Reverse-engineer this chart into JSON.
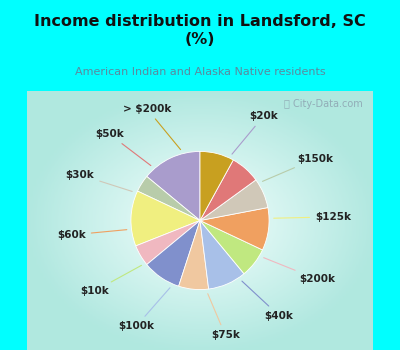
{
  "title": "Income distribution in Landsford, SC\n(%)",
  "subtitle": "American Indian and Alaska Native residents",
  "title_color": "#111111",
  "subtitle_color": "#5a8a9f",
  "bg_color": "#00ffff",
  "chart_bg_top_left": "#c8ede8",
  "chart_bg_center": "#f0faf8",
  "watermark": "ⓘ City-Data.com",
  "slices": [
    {
      "label": "$20k",
      "value": 14,
      "color": "#a99ccc"
    },
    {
      "label": "$150k",
      "value": 4,
      "color": "#b8ccaa"
    },
    {
      "label": "$125k",
      "value": 13,
      "color": "#f0ef80"
    },
    {
      "label": "$200k",
      "value": 5,
      "color": "#f0b8c0"
    },
    {
      "label": "$40k",
      "value": 9,
      "color": "#8090cc"
    },
    {
      "label": "$75k",
      "value": 7,
      "color": "#f0c8a0"
    },
    {
      "label": "$100k",
      "value": 9,
      "color": "#a8c0e8"
    },
    {
      "label": "$10k",
      "value": 7,
      "color": "#c0e880"
    },
    {
      "label": "$60k",
      "value": 10,
      "color": "#f0a060"
    },
    {
      "label": "$30k",
      "value": 7,
      "color": "#d0c8b8"
    },
    {
      "label": "$50k",
      "value": 7,
      "color": "#e07878"
    },
    {
      "label": "> $200k",
      "value": 8,
      "color": "#c8a020"
    }
  ],
  "label_fontsize": 7.5,
  "label_color": "#222222",
  "figsize": [
    4.0,
    3.5
  ],
  "dpi": 100
}
